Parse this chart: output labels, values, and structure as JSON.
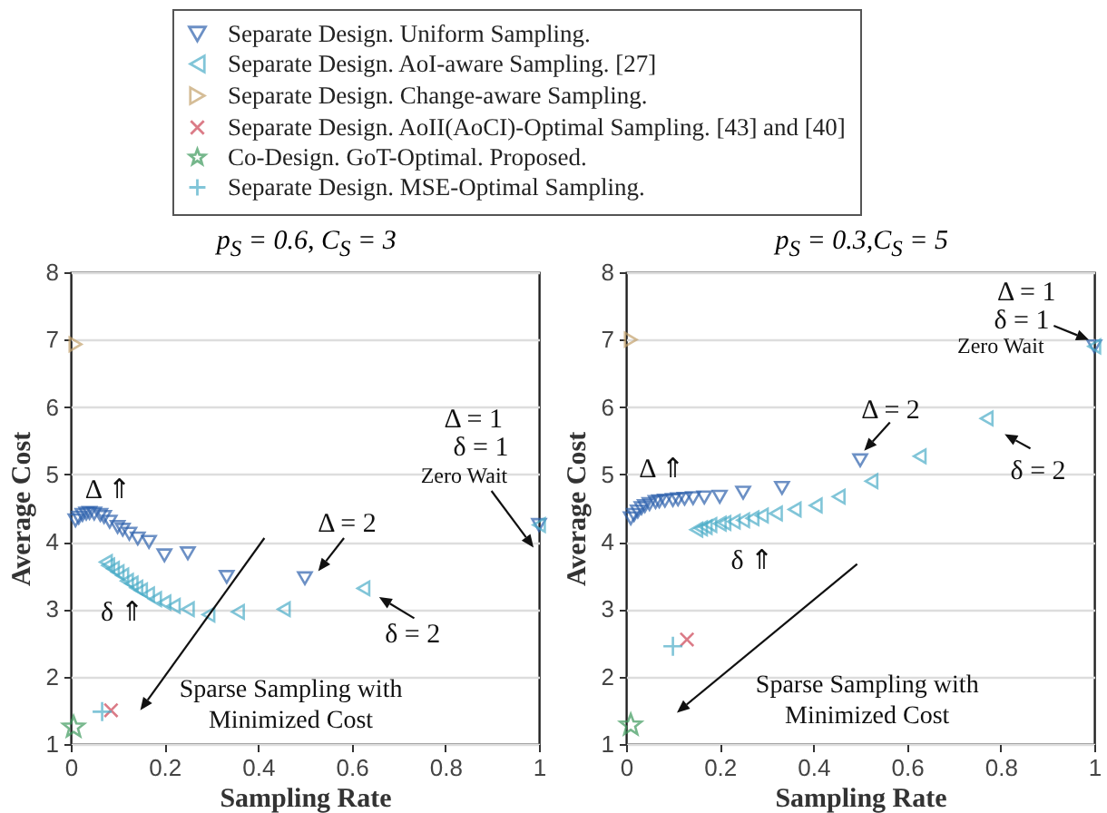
{
  "chart_data": [
    {
      "type": "scatter",
      "title": "p$_{S}$ = 0.6, C$_{S}$ = 3",
      "xlabel": "Sampling Rate",
      "ylabel": "Average Cost",
      "xlim": [
        0,
        1
      ],
      "xticks": [
        0,
        0.2,
        0.4,
        0.6,
        0.8,
        1
      ],
      "ylim": [
        1,
        8
      ],
      "yticks": [
        1,
        2,
        3,
        4,
        5,
        6,
        7,
        8
      ],
      "grid": "y",
      "legend": "top",
      "series": [
        {
          "name": "Separate Design. Uniform Sampling.",
          "color": "#2e62ad",
          "marker": "triangle-down",
          "x": [
            1,
            0.5,
            0.333,
            0.25,
            0.2,
            0.167,
            0.143,
            0.125,
            0.111,
            0.1,
            0.083,
            0.071,
            0.063,
            0.05,
            0.04,
            0.033,
            0.025,
            0.017,
            0.01
          ],
          "values": [
            4.25,
            3.46,
            3.48,
            3.83,
            3.8,
            4.0,
            4.05,
            4.12,
            4.18,
            4.22,
            4.3,
            4.37,
            4.4,
            4.42,
            4.43,
            4.42,
            4.4,
            4.36,
            4.32
          ]
        },
        {
          "name": "Separate Design. AoI-aware Sampling. [27]",
          "color": "#4cadc8",
          "marker": "triangle-left",
          "x": [
            1,
            0.625,
            0.455,
            0.357,
            0.294,
            0.25,
            0.22,
            0.2,
            0.18,
            0.165,
            0.15,
            0.14,
            0.13,
            0.12,
            0.11,
            0.1,
            0.09,
            0.08,
            0.075
          ],
          "values": [
            4.25,
            3.31,
            3.0,
            2.96,
            2.92,
            3.0,
            3.05,
            3.1,
            3.15,
            3.22,
            3.28,
            3.32,
            3.38,
            3.42,
            3.5,
            3.55,
            3.6,
            3.65,
            3.7
          ]
        },
        {
          "name": "Separate Design. Change-aware Sampling.",
          "color": "#c4a26c",
          "marker": "triangle-right",
          "x": [
            0.01
          ],
          "values": [
            6.93
          ]
        },
        {
          "name": "Separate Design. AoII(AoCI)-Optimal Sampling. [43] and [40]",
          "color": "#cc4455",
          "marker": "x",
          "x": [
            0.086
          ],
          "values": [
            1.5
          ]
        },
        {
          "name": "Co-Design. GoT-Optimal. Proposed.",
          "color": "#3d9a5c",
          "marker": "star",
          "x": [
            0.006
          ],
          "values": [
            1.25
          ]
        },
        {
          "name": "Separate Design. MSE-Optimal Sampling.",
          "color": "#4cadc8",
          "marker": "cross",
          "x": [
            0.067
          ],
          "values": [
            1.48
          ]
        }
      ],
      "annotations": [
        "Δ = 1",
        "δ = 1",
        "Zero Wait",
        "Δ = 2",
        "δ = 2",
        "Δ ⇑",
        "δ ⇑",
        "Sparse Sampling with\nMinimized Cost"
      ]
    },
    {
      "type": "scatter",
      "title": "p$_{S}$ = 0.3,C$_{S}$ = 5",
      "xlabel": "Sampling Rate",
      "ylabel": "Average Cost",
      "xlim": [
        0,
        1
      ],
      "xticks": [
        0,
        0.2,
        0.4,
        0.6,
        0.8,
        1
      ],
      "ylim": [
        1,
        8
      ],
      "yticks": [
        1,
        2,
        3,
        4,
        5,
        6,
        7,
        8
      ],
      "grid": "y",
      "series": [
        {
          "color": "#2e62ad",
          "marker": "triangle-down",
          "x": [
            1,
            0.5,
            0.333,
            0.25,
            0.2,
            0.167,
            0.143,
            0.125,
            0.111,
            0.1,
            0.083,
            0.071,
            0.063,
            0.05,
            0.04,
            0.033,
            0.025,
            0.017,
            0.01
          ],
          "values": [
            6.9,
            5.21,
            4.8,
            4.73,
            4.67,
            4.66,
            4.65,
            4.64,
            4.63,
            4.62,
            4.61,
            4.6,
            4.59,
            4.56,
            4.53,
            4.5,
            4.45,
            4.4,
            4.35
          ]
        },
        {
          "color": "#4cadc8",
          "marker": "triangle-left",
          "x": [
            1,
            0.77,
            0.627,
            0.524,
            0.454,
            0.405,
            0.36,
            0.32,
            0.29,
            0.27,
            0.25,
            0.23,
            0.21,
            0.2,
            0.18,
            0.17,
            0.16,
            0.15
          ],
          "values": [
            6.9,
            5.83,
            5.27,
            4.9,
            4.67,
            4.54,
            4.48,
            4.42,
            4.39,
            4.35,
            4.32,
            4.3,
            4.28,
            4.27,
            4.25,
            4.22,
            4.2,
            4.18
          ]
        },
        {
          "color": "#c4a26c",
          "marker": "triangle-right",
          "x": [
            0.01
          ],
          "values": [
            7.0
          ]
        },
        {
          "color": "#cc4455",
          "marker": "x",
          "x": [
            0.13
          ],
          "values": [
            2.55
          ]
        },
        {
          "color": "#3d9a5c",
          "marker": "star",
          "x": [
            0.01
          ],
          "values": [
            1.28
          ]
        },
        {
          "color": "#4cadc8",
          "marker": "cross",
          "x": [
            0.1
          ],
          "values": [
            2.45
          ]
        }
      ],
      "annotations": [
        "Δ = 1",
        "δ = 1",
        "Zero Wait",
        "Δ = 2",
        "δ = 2",
        "Δ ⇑",
        "δ ⇑",
        "Sparse Sampling with\nMinimized Cost"
      ]
    }
  ]
}
